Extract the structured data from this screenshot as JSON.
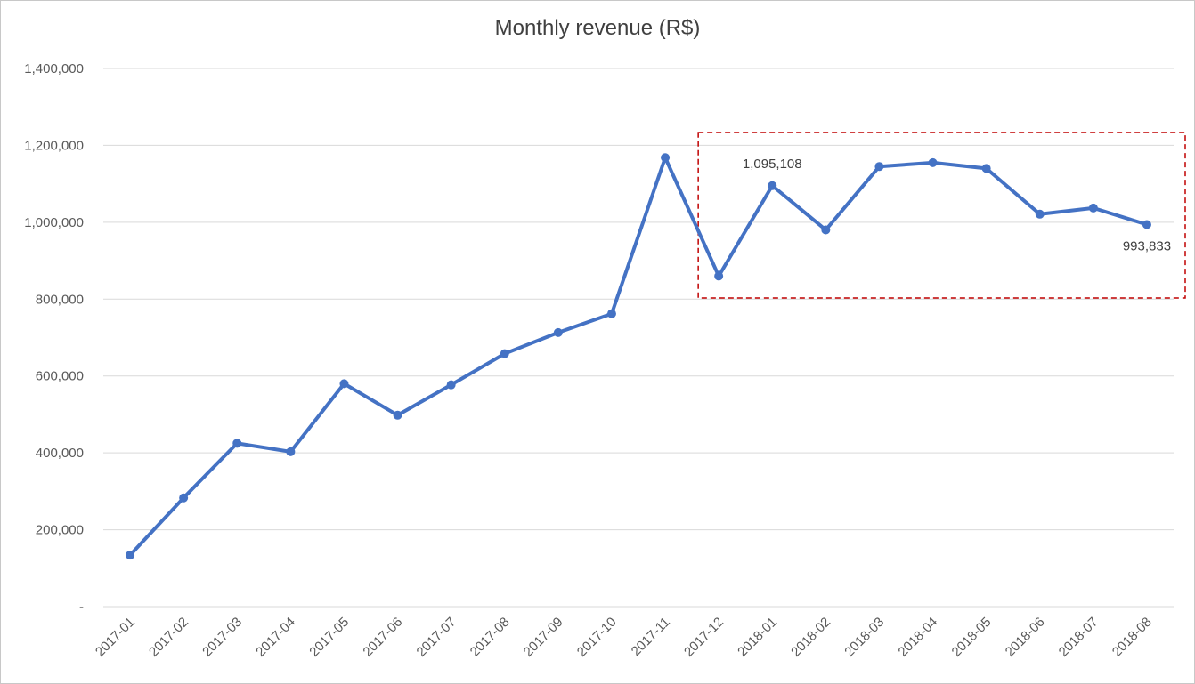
{
  "chart_data": {
    "type": "line",
    "title": "Monthly revenue (R$)",
    "xlabel": "",
    "ylabel": "",
    "categories": [
      "2017-01",
      "2017-02",
      "2017-03",
      "2017-04",
      "2017-05",
      "2017-06",
      "2017-07",
      "2017-08",
      "2017-09",
      "2017-10",
      "2017-11",
      "2017-12",
      "2018-01",
      "2018-02",
      "2018-03",
      "2018-04",
      "2018-05",
      "2018-06",
      "2018-07",
      "2018-08"
    ],
    "series": [
      {
        "values": [
          134000,
          283000,
          425000,
          403000,
          580000,
          498000,
          577000,
          658000,
          713000,
          762000,
          1168000,
          860000,
          1095108,
          980000,
          1145000,
          1155000,
          1140000,
          1021000,
          1037000,
          993833
        ],
        "color": "#4472C4"
      }
    ],
    "ylim": [
      0,
      1400000
    ],
    "yticks": [
      {
        "value": 0,
        "label": "-"
      },
      {
        "value": 200000,
        "label": "200,000"
      },
      {
        "value": 400000,
        "label": "400,000"
      },
      {
        "value": 600000,
        "label": "600,000"
      },
      {
        "value": 800000,
        "label": "800,000"
      },
      {
        "value": 1000000,
        "label": "1,000,000"
      },
      {
        "value": 1200000,
        "label": "1,200,000"
      },
      {
        "value": 1400000,
        "label": "1,400,000"
      }
    ],
    "grid": true,
    "legend": "none",
    "data_labels": [
      {
        "index": 12,
        "text": "1,095,108",
        "position": "above"
      },
      {
        "index": 19,
        "text": "993,833",
        "position": "below"
      }
    ],
    "highlight_box": {
      "from": "2017-12",
      "to": "2018-08",
      "color": "#C00000",
      "style": "dashed"
    }
  }
}
